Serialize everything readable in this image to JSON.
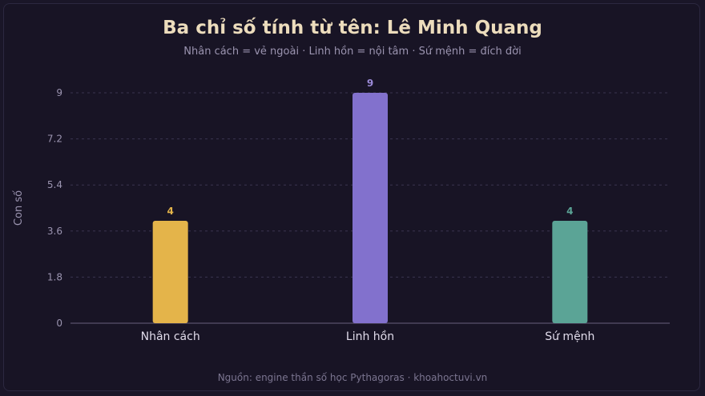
{
  "title": "Ba chỉ số tính từ tên: Lê Minh Quang",
  "subtitle": "Nhân cách = vẻ ngoài · Linh hồn = nội tâm · Sứ mệnh = đích đời",
  "footer": "Nguồn: engine thần số học Pythagoras · khoahoctuvi.vn",
  "chart_data": {
    "type": "bar",
    "categories": [
      "Nhân cách",
      "Linh hồn",
      "Sứ mệnh"
    ],
    "values": [
      4,
      9,
      4
    ],
    "data_labels": [
      "4",
      "9",
      "4"
    ],
    "colors": [
      "#e4b44a",
      "#8271cd",
      "#5ba496"
    ],
    "label_colors": [
      "#e4b44a",
      "#9b8ad8",
      "#5ba496"
    ],
    "ylabel": "Con số",
    "xlabel": "",
    "ylim": [
      0,
      9
    ],
    "yticks": [
      0,
      1.8,
      3.6,
      5.4,
      7.2,
      9
    ],
    "ytick_labels": [
      "0",
      "1.8",
      "3.6",
      "5.4",
      "7.2",
      "9"
    ],
    "grid": true,
    "legend": "none"
  }
}
